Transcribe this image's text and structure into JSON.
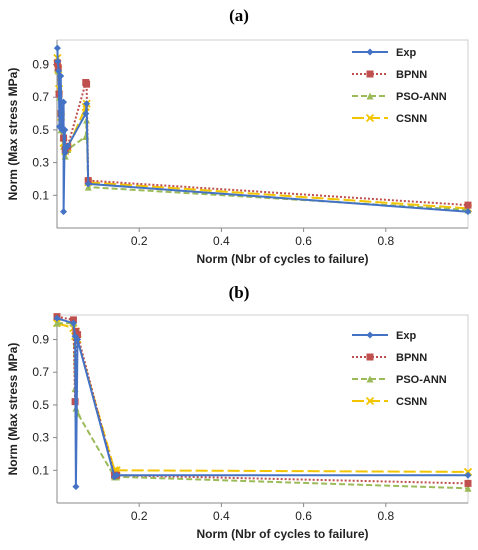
{
  "chart_data": [
    {
      "panel_label": "(a)",
      "type": "line",
      "xlabel": "Norm  (Nbr of cycles to failure)",
      "ylabel": "Norm (Max stress MPa)",
      "xlim": [
        0,
        1
      ],
      "ylim": [
        -0.1,
        1.05
      ],
      "xticks": [
        0.2,
        0.4,
        0.6,
        0.8
      ],
      "yticks": [
        0.1,
        0.3,
        0.5,
        0.7,
        0.9
      ],
      "legend_position": "top-right",
      "grid": false,
      "series": [
        {
          "name": "Exp",
          "color": "#4472c4",
          "style": "solid",
          "marker": "diamond",
          "points": [
            [
              0.001,
              1.0
            ],
            [
              0.002,
              0.92
            ],
            [
              0.004,
              0.86
            ],
            [
              0.006,
              0.52
            ],
            [
              0.009,
              0.83
            ],
            [
              0.012,
              0.5
            ],
            [
              0.016,
              0.67
            ],
            [
              0.016,
              0.0
            ],
            [
              0.019,
              0.5
            ],
            [
              0.02,
              0.36
            ],
            [
              0.026,
              0.4
            ],
            [
              0.07,
              0.6
            ],
            [
              0.072,
              0.66
            ],
            [
              0.076,
              0.17
            ],
            [
              1.0,
              0.0
            ]
          ]
        },
        {
          "name": "BPNN",
          "color": "#c0504d",
          "style": "dot",
          "marker": "square",
          "points": [
            [
              0.001,
              0.91
            ],
            [
              0.003,
              0.88
            ],
            [
              0.005,
              0.72
            ],
            [
              0.01,
              0.6
            ],
            [
              0.016,
              0.45
            ],
            [
              0.02,
              0.38
            ],
            [
              0.026,
              0.4
            ],
            [
              0.07,
              0.79
            ],
            [
              0.072,
              0.78
            ],
            [
              0.076,
              0.19
            ],
            [
              1.0,
              0.04
            ]
          ]
        },
        {
          "name": "PSO-ANN",
          "color": "#9bbb59",
          "style": "dash",
          "marker": "triangle",
          "points": [
            [
              0.001,
              0.88
            ],
            [
              0.003,
              0.86
            ],
            [
              0.006,
              0.7
            ],
            [
              0.01,
              0.5
            ],
            [
              0.016,
              0.4
            ],
            [
              0.02,
              0.34
            ],
            [
              0.026,
              0.38
            ],
            [
              0.07,
              0.46
            ],
            [
              0.072,
              0.56
            ],
            [
              0.076,
              0.15
            ],
            [
              1.0,
              0.01
            ]
          ]
        },
        {
          "name": "CSNN",
          "color": "#f2c500",
          "style": "longdash",
          "marker": "x",
          "points": [
            [
              0.001,
              0.94
            ],
            [
              0.003,
              0.87
            ],
            [
              0.005,
              0.75
            ],
            [
              0.01,
              0.58
            ],
            [
              0.016,
              0.42
            ],
            [
              0.02,
              0.37
            ],
            [
              0.026,
              0.39
            ],
            [
              0.07,
              0.64
            ],
            [
              0.072,
              0.66
            ],
            [
              0.076,
              0.18
            ],
            [
              1.0,
              0.02
            ]
          ]
        }
      ]
    },
    {
      "panel_label": "(b)",
      "type": "line",
      "xlabel": "Norm  (Nbr of cycles to failure)",
      "ylabel": "Norm (Max stress MPa)",
      "xlim": [
        0,
        1
      ],
      "ylim": [
        -0.1,
        1.05
      ],
      "xticks": [
        0.2,
        0.4,
        0.6,
        0.8
      ],
      "yticks": [
        0.1,
        0.3,
        0.5,
        0.7,
        0.9
      ],
      "legend_position": "top-right",
      "grid": false,
      "series": [
        {
          "name": "Exp",
          "color": "#4472c4",
          "style": "solid",
          "marker": "diamond",
          "points": [
            [
              0.0,
              1.03
            ],
            [
              0.04,
              1.0
            ],
            [
              0.044,
              0.92
            ],
            [
              0.046,
              0.0
            ],
            [
              0.05,
              0.9
            ],
            [
              0.14,
              0.06
            ],
            [
              0.145,
              0.07
            ],
            [
              1.0,
              0.07
            ]
          ]
        },
        {
          "name": "BPNN",
          "color": "#c0504d",
          "style": "dot",
          "marker": "square",
          "points": [
            [
              0.0,
              1.04
            ],
            [
              0.04,
              1.02
            ],
            [
              0.044,
              0.52
            ],
            [
              0.046,
              0.95
            ],
            [
              0.05,
              0.93
            ],
            [
              0.14,
              0.07
            ],
            [
              0.145,
              0.07
            ],
            [
              1.0,
              0.02
            ]
          ]
        },
        {
          "name": "PSO-ANN",
          "color": "#9bbb59",
          "style": "dash",
          "marker": "triangle",
          "points": [
            [
              0.0,
              1.0
            ],
            [
              0.04,
              1.0
            ],
            [
              0.044,
              0.6
            ],
            [
              0.046,
              0.48
            ],
            [
              0.05,
              0.45
            ],
            [
              0.14,
              0.06
            ],
            [
              0.145,
              0.06
            ],
            [
              1.0,
              -0.01
            ]
          ]
        },
        {
          "name": "CSNN",
          "color": "#f2c500",
          "style": "longdash",
          "marker": "x",
          "points": [
            [
              0.0,
              1.0
            ],
            [
              0.04,
              0.97
            ],
            [
              0.044,
              0.92
            ],
            [
              0.046,
              0.95
            ],
            [
              0.05,
              0.9
            ],
            [
              0.14,
              0.1
            ],
            [
              0.145,
              0.1
            ],
            [
              1.0,
              0.09
            ]
          ]
        }
      ]
    }
  ]
}
